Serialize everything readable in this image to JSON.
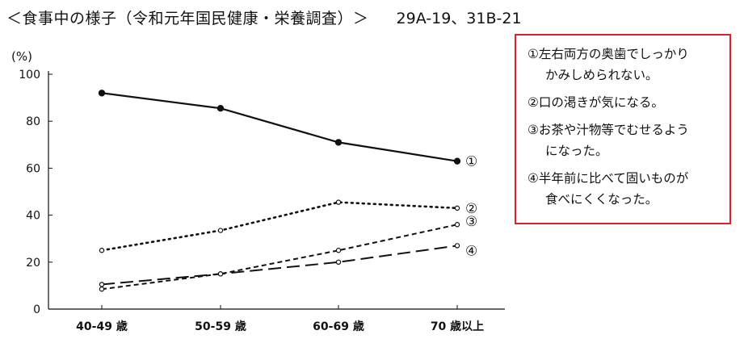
{
  "header": {
    "title": "＜食事中の様子（令和元年国民健康・栄養調査）＞",
    "code": "29A-19、31B-21"
  },
  "legend": [
    {
      "line1": "①左右両方の奥歯でしっかり",
      "line2": "かみしめられない。"
    },
    {
      "line1": "②口の渇きが気になる。",
      "line2": ""
    },
    {
      "line1": "③お茶や汁物等でむせるよう",
      "line2": "になった。"
    },
    {
      "line1": "④半年前に比べて固いものが",
      "line2": "食べにくくなった。"
    }
  ],
  "colors": {
    "accent_border": "#e0202a",
    "ink": "#111111"
  },
  "chart_data": {
    "type": "line",
    "ylabel": "(%)",
    "xlabel": "",
    "ylim": [
      0,
      100
    ],
    "yticks": [
      0,
      20,
      40,
      60,
      80,
      100
    ],
    "categories": [
      "40-49 歳",
      "50-59 歳",
      "60-69 歳",
      "70 歳以上"
    ],
    "series": [
      {
        "name": "①",
        "style": "solid",
        "values": [
          92,
          85.5,
          71,
          63
        ]
      },
      {
        "name": "②",
        "style": "dotted",
        "values": [
          25,
          33.5,
          45.5,
          43
        ]
      },
      {
        "name": "③",
        "style": "short-dash",
        "values": [
          8.5,
          15,
          25,
          36
        ]
      },
      {
        "name": "④",
        "style": "long-dash",
        "values": [
          10.5,
          15,
          20,
          27
        ]
      }
    ],
    "grid": false,
    "legend_position": "right"
  }
}
